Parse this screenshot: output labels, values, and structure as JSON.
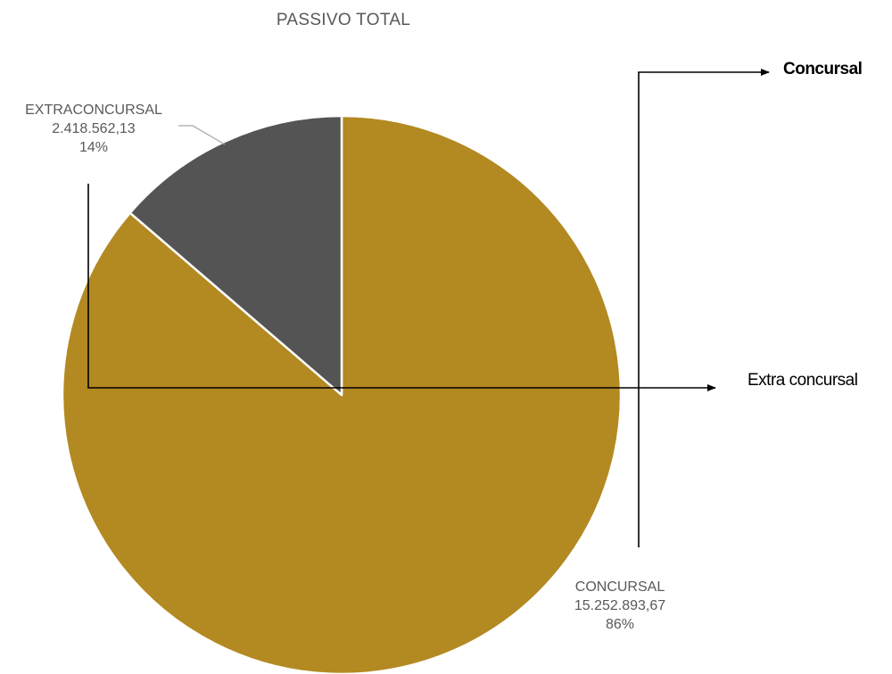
{
  "chart_data": {
    "type": "pie",
    "title": "PASSIVO TOTAL",
    "slices": [
      {
        "label": "CONCURSAL",
        "value": 15252893.67,
        "value_label": "15.252.893,67",
        "percent_label": "86%",
        "color": "#b38921"
      },
      {
        "label": "EXTRACONCURSAL",
        "value": 2418562.13,
        "value_label": "2.418.562,13",
        "percent_label": "14%",
        "color": "#545454"
      }
    ],
    "start_angle_deg": 0,
    "direction": "clockwise",
    "legend": "none"
  },
  "annotations": {
    "concursal": "Concursal",
    "extra_concursal": "Extra concursal"
  },
  "colors": {
    "slice_border": "#ffffff",
    "leader_line": "#a6a6a6",
    "annotation_line": "#000000",
    "text": "#595959"
  }
}
